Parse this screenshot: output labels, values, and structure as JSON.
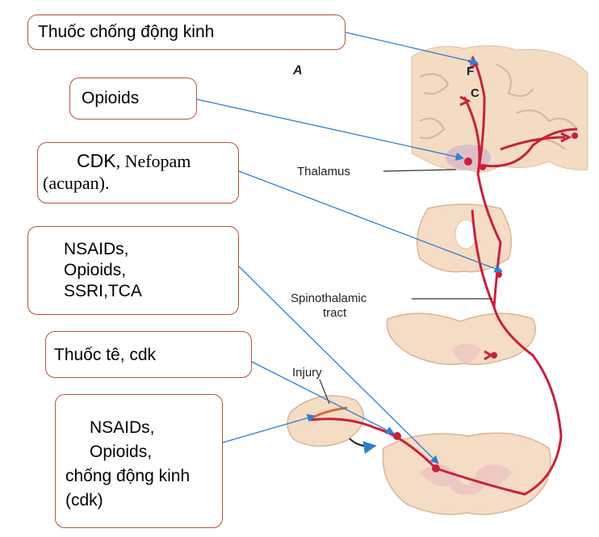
{
  "boxes": {
    "antiepileptic": "Thuốc chống động kinh",
    "opioids": "Opioids",
    "cdk_nefopam": {
      "cdk": "CDK",
      "nefopam": ", Nefopam",
      "acupan": "(acupan)."
    },
    "nsaids_group": [
      "NSAIDs,",
      "Opioids,",
      "SSRI,TCA"
    ],
    "local_anesthetic": "Thuốc tê, cdk",
    "nsaids_peripheral": [
      "NSAIDs,",
      "Opioids,",
      "chống động kinh",
      "(cdk)"
    ]
  },
  "labels": {
    "panel": "A",
    "f": "F",
    "c": "C",
    "thalamus": "Thalamus",
    "spinothalamic_1": "Spinothalamic",
    "spinothalamic_2": "tract",
    "injury": "Injury"
  },
  "colors": {
    "box_border": "#b0563a",
    "arrow": "#2f7fd0",
    "pathway": "#c8203c",
    "tissue": "#f5dcc4"
  }
}
